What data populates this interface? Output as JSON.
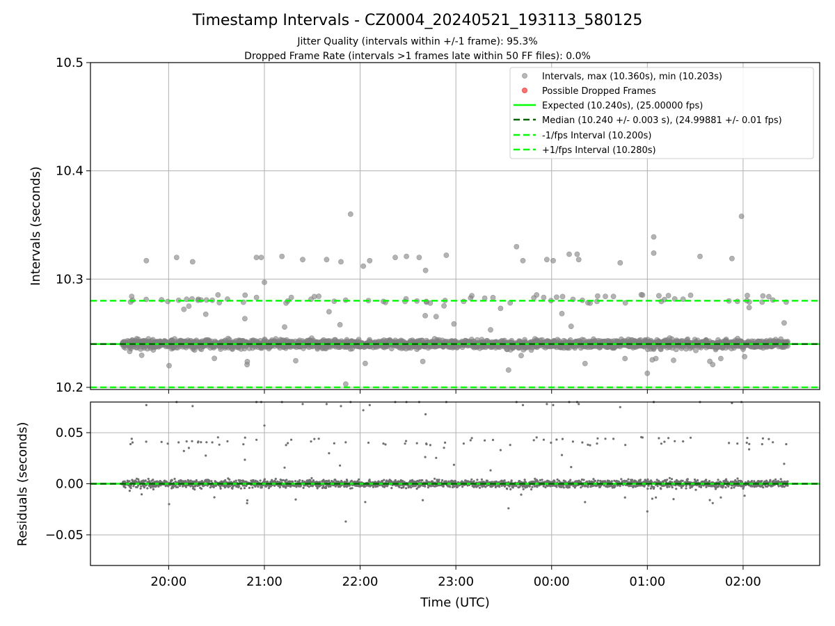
{
  "figure": {
    "title": "Timestamp Intervals - CZ0004_20240521_193113_580125",
    "subtitle_1": "Jitter Quality (intervals within +/-1 frame): 95.3%",
    "subtitle_2": "Dropped Frame Rate (intervals >1 frames late within 50 FF files): 0.0%"
  },
  "chart_data": [
    {
      "type": "scatter",
      "panel": "intervals",
      "title": "",
      "xlabel": "",
      "ylabel": "Intervals (seconds)",
      "ylim": [
        10.198,
        10.5
      ],
      "yticks": [
        10.2,
        10.3,
        10.4,
        10.5
      ],
      "ytick_labels": [
        "10.2",
        "10.3",
        "10.4",
        "10.5"
      ],
      "xlim": [
        "19:11",
        "02:48"
      ],
      "xticks": [
        "20:00",
        "21:00",
        "22:00",
        "23:00",
        "00:00",
        "01:00",
        "02:00"
      ],
      "grid": true,
      "legend": "top-right",
      "series": [
        {
          "name": "Intervals, max (10.360s), min (10.203s)",
          "kind": "points",
          "color": "#808080",
          "time_range": [
            "19:31",
            "02:28"
          ],
          "baseline": 10.24,
          "spread": 0.003,
          "max": 10.36,
          "min": 10.203,
          "outliers": [
            {
              "t": "19:46",
              "v": 10.317
            },
            {
              "t": "20:05",
              "v": 10.32
            },
            {
              "t": "20:15",
              "v": 10.316
            },
            {
              "t": "20:55",
              "v": 10.32
            },
            {
              "t": "20:58",
              "v": 10.32
            },
            {
              "t": "21:00",
              "v": 10.297
            },
            {
              "t": "21:11",
              "v": 10.321
            },
            {
              "t": "21:24",
              "v": 10.318
            },
            {
              "t": "21:39",
              "v": 10.318
            },
            {
              "t": "21:48",
              "v": 10.316
            },
            {
              "t": "21:51",
              "v": 10.203
            },
            {
              "t": "21:54",
              "v": 10.36
            },
            {
              "t": "22:02",
              "v": 10.312
            },
            {
              "t": "22:06",
              "v": 10.317
            },
            {
              "t": "22:22",
              "v": 10.32
            },
            {
              "t": "22:29",
              "v": 10.321
            },
            {
              "t": "22:37",
              "v": 10.32
            },
            {
              "t": "22:41",
              "v": 10.308
            },
            {
              "t": "22:54",
              "v": 10.322
            },
            {
              "t": "23:33",
              "v": 10.216
            },
            {
              "t": "23:38",
              "v": 10.33
            },
            {
              "t": "23:42",
              "v": 10.317
            },
            {
              "t": "23:57",
              "v": 10.318
            },
            {
              "t": "00:01",
              "v": 10.317
            },
            {
              "t": "00:11",
              "v": 10.323
            },
            {
              "t": "00:16",
              "v": 10.323
            },
            {
              "t": "00:17",
              "v": 10.318
            },
            {
              "t": "00:43",
              "v": 10.315
            },
            {
              "t": "01:00",
              "v": 10.213
            },
            {
              "t": "01:04",
              "v": 10.339
            },
            {
              "t": "01:04",
              "v": 10.324
            },
            {
              "t": "01:33",
              "v": 10.321
            },
            {
              "t": "01:53",
              "v": 10.319
            },
            {
              "t": "01:59",
              "v": 10.358
            }
          ]
        },
        {
          "name": "Possible Dropped Frames",
          "kind": "points",
          "color": "#ff0000",
          "values": []
        },
        {
          "name": "Expected (10.240s), (25.00000 fps)",
          "kind": "hline",
          "style": "solid",
          "color": "#00ff00",
          "y": 10.24
        },
        {
          "name": "Median (10.240 +/- 0.003 s), (24.99881 +/- 0.01 fps)",
          "kind": "hline",
          "style": "dashed",
          "color": "#006400",
          "y": 10.24
        },
        {
          "name": "-1/fps Interval (10.200s)",
          "kind": "hline",
          "style": "dashed",
          "color": "#00ff00",
          "y": 10.2
        },
        {
          "name": "+1/fps Interval (10.280s)",
          "kind": "hline",
          "style": "dashed",
          "color": "#00ff00",
          "y": 10.28
        }
      ]
    },
    {
      "type": "scatter",
      "panel": "residuals",
      "title": "",
      "xlabel": "Time (UTC)",
      "ylabel": "Residuals (seconds)",
      "ylim": [
        -0.08,
        0.08
      ],
      "yticks": [
        -0.05,
        0.0,
        0.05
      ],
      "ytick_labels": [
        "−0.05",
        "0.00",
        "0.05"
      ],
      "xlim": [
        "19:11",
        "02:48"
      ],
      "xticks": [
        "20:00",
        "21:00",
        "22:00",
        "23:00",
        "00:00",
        "01:00",
        "02:00"
      ],
      "grid": true,
      "series": [
        {
          "kind": "points",
          "color": "#808080",
          "baseline": 0.0,
          "spread": 0.003,
          "time_range": [
            "19:31",
            "02:28"
          ]
        },
        {
          "kind": "hline",
          "style": "solid",
          "color": "#00ff00",
          "y": 0.0
        },
        {
          "kind": "hline",
          "style": "dashed",
          "color": "#006400",
          "y": 0.0
        }
      ]
    }
  ]
}
